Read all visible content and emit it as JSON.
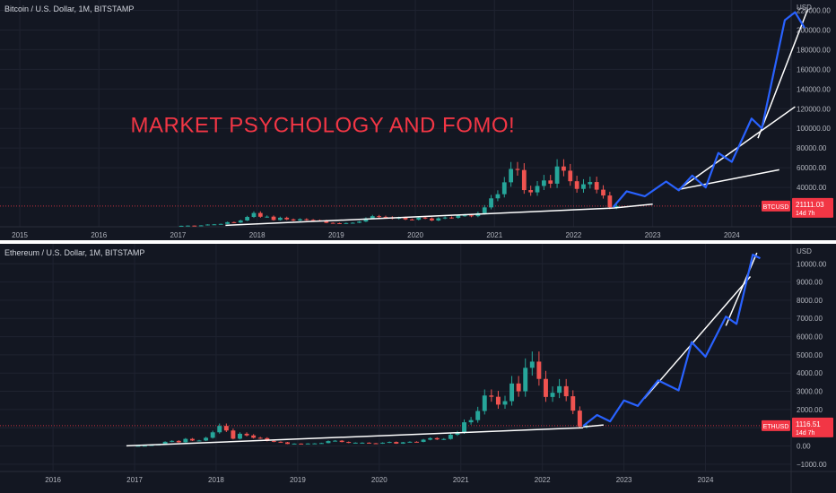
{
  "chart_data": [
    {
      "type": "candlestick",
      "title": "Bitcoin / U.S. Dollar, 1M, BITSTAMP",
      "currency_label": "USD",
      "symbol": "BTCUSD",
      "last_price": "21111.03",
      "countdown": "14d 7h",
      "annotation": "MARKET PSYCHOLOGY AND FOMO!",
      "x_ticks": [
        "2015",
        "2016",
        "2017",
        "2018",
        "2019",
        "2020",
        "2021",
        "2022",
        "2023",
        "2024"
      ],
      "y_ticks": [
        "220000.00",
        "200000.00",
        "180000.00",
        "160000.00",
        "140000.00",
        "120000.00",
        "100000.00",
        "80000.00",
        "60000.00",
        "40000.00"
      ],
      "ylim": [
        0,
        225000
      ],
      "xlim": [
        2014.75,
        2024.75
      ],
      "grid": true,
      "candles_monthly_start": "2017.0",
      "candles_close": [
        1000,
        1200,
        1100,
        1400,
        2300,
        2500,
        2900,
        4700,
        4300,
        6400,
        10000,
        14000,
        10200,
        10300,
        6900,
        9200,
        7500,
        6400,
        7700,
        7000,
        6600,
        6300,
        4000,
        3700,
        3400,
        3800,
        4100,
        5300,
        8600,
        10800,
        10100,
        9600,
        8300,
        9200,
        7500,
        7200,
        9300,
        8500,
        6400,
        8600,
        9400,
        9100,
        11300,
        11600,
        10800,
        13800,
        19700,
        28900,
        33100,
        45200,
        58800,
        57700,
        37300,
        35000,
        41500,
        47100,
        43800,
        61300,
        57000,
        46300,
        38500,
        43200,
        45500,
        37700,
        31800,
        19900,
        21100
      ],
      "projection_path": [
        [
          2022.5,
          20000
        ],
        [
          2022.67,
          36000
        ],
        [
          2022.9,
          31000
        ],
        [
          2023.17,
          46000
        ],
        [
          2023.33,
          37000
        ],
        [
          2023.5,
          52000
        ],
        [
          2023.67,
          40000
        ],
        [
          2023.83,
          75000
        ],
        [
          2024.0,
          66000
        ],
        [
          2024.25,
          110000
        ],
        [
          2024.38,
          100000
        ],
        [
          2024.67,
          210000
        ],
        [
          2024.8,
          218000
        ],
        [
          2024.92,
          202000
        ]
      ],
      "trendlines": [
        [
          [
            2017.6,
            1500
          ],
          [
            2022.5,
            19000
          ]
        ],
        [
          [
            2022.5,
            19000
          ],
          [
            2023.0,
            23000
          ]
        ],
        [
          [
            2023.33,
            38000
          ],
          [
            2024.6,
            58000
          ]
        ],
        [
          [
            2023.33,
            38000
          ],
          [
            2024.8,
            122000
          ]
        ],
        [
          [
            2024.33,
            90000
          ],
          [
            2024.96,
            221000
          ]
        ]
      ]
    },
    {
      "type": "candlestick",
      "title": "Ethereum / U.S. Dollar, 1M, BITSTAMP",
      "currency_label": "USD",
      "symbol": "ETHUSD",
      "last_price": "1116.51",
      "countdown": "14d 7h",
      "x_ticks": [
        "2016",
        "2017",
        "2018",
        "2019",
        "2020",
        "2021",
        "2022",
        "2023",
        "2024"
      ],
      "y_ticks": [
        "10000.00",
        "9000.00",
        "8000.00",
        "7000.00",
        "6000.00",
        "5000.00",
        "4000.00",
        "3000.00",
        "2000.00",
        "1000.00",
        "0.00",
        "−1000.00"
      ],
      "ylim": [
        -1400,
        10800
      ],
      "xlim": [
        2015.35,
        2025.05
      ],
      "grid": true,
      "candles_monthly_start": "2017.0",
      "candles_close": [
        10,
        15,
        50,
        80,
        230,
        280,
        200,
        390,
        300,
        300,
        450,
        750,
        1100,
        850,
        400,
        670,
        580,
        450,
        430,
        280,
        230,
        200,
        110,
        130,
        110,
        135,
        140,
        160,
        270,
        290,
        220,
        170,
        180,
        180,
        150,
        130,
        180,
        220,
        130,
        200,
        230,
        225,
        345,
        430,
        360,
        385,
        615,
        740,
        1300,
        1420,
        1920,
        2770,
        2700,
        2270,
        2460,
        3430,
        3000,
        4290,
        4630,
        3680,
        2690,
        2920,
        3280,
        2730,
        1940,
        1070,
        1117
      ],
      "projection_path": [
        [
          2022.5,
          1100
        ],
        [
          2022.67,
          1700
        ],
        [
          2022.83,
          1350
        ],
        [
          2023.0,
          2500
        ],
        [
          2023.17,
          2200
        ],
        [
          2023.42,
          3600
        ],
        [
          2023.67,
          3050
        ],
        [
          2023.83,
          5700
        ],
        [
          2024.0,
          4900
        ],
        [
          2024.25,
          7100
        ],
        [
          2024.38,
          6700
        ],
        [
          2024.58,
          10500
        ],
        [
          2024.67,
          10300
        ]
      ],
      "trendlines": [
        [
          [
            2016.9,
            10
          ],
          [
            2022.5,
            1000
          ]
        ],
        [
          [
            2022.5,
            1050
          ],
          [
            2022.75,
            1150
          ]
        ],
        [
          [
            2023.25,
            2600
          ],
          [
            2024.55,
            9300
          ]
        ],
        [
          [
            2024.25,
            6600
          ],
          [
            2024.63,
            10600
          ]
        ]
      ]
    }
  ]
}
